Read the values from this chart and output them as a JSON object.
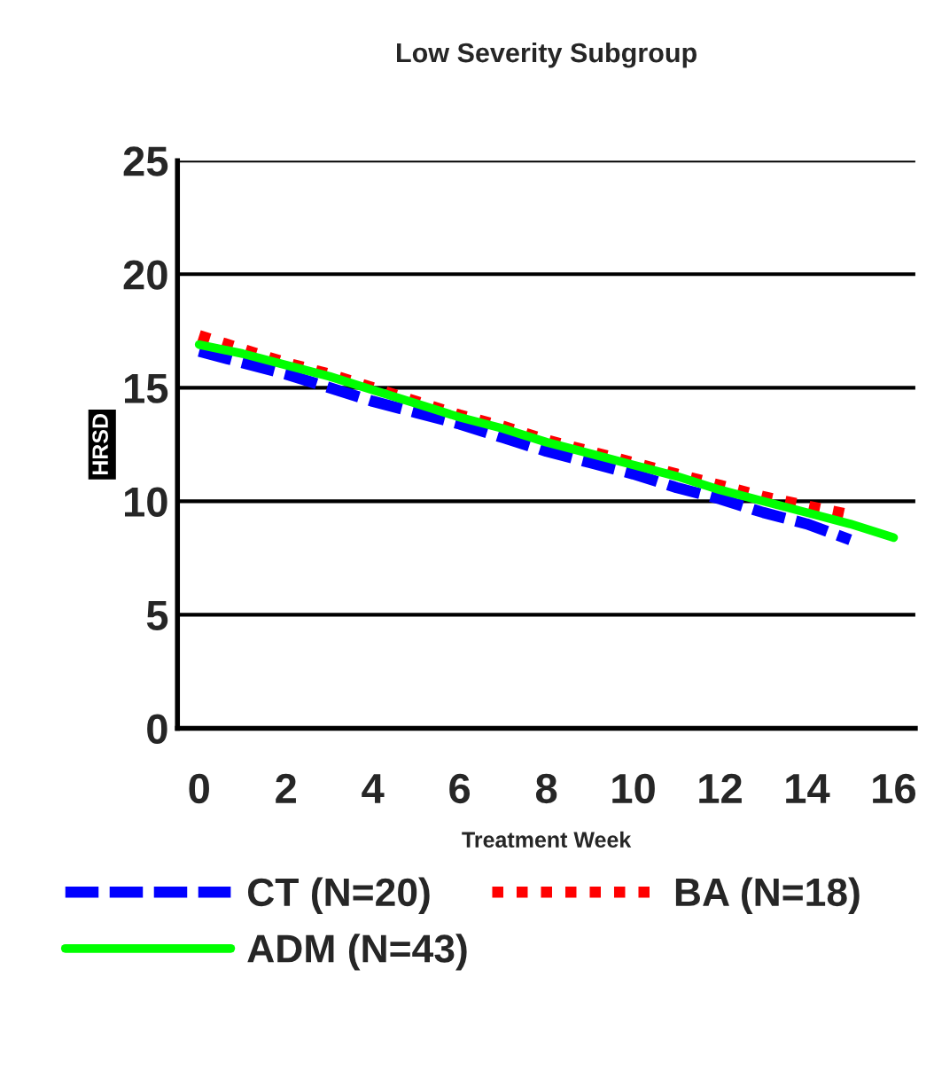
{
  "chart_data": {
    "type": "line",
    "title": "Low Severity Subgroup",
    "xlabel": "Treatment Week",
    "ylabel": "HRSD",
    "categories": [
      "0",
      null,
      "2",
      null,
      "4",
      null,
      "6",
      null,
      "8",
      null,
      "10",
      null,
      "12",
      null,
      "14",
      null,
      "16"
    ],
    "series": [
      {
        "name": "CT (N=20)",
        "color": "#0000ff",
        "line_style": "dashed",
        "values": [
          16.6,
          16.1,
          15.6,
          15.0,
          14.4,
          13.9,
          13.4,
          12.8,
          12.2,
          11.7,
          11.2,
          10.6,
          10.1,
          9.5,
          9.0,
          8.3,
          null
        ]
      },
      {
        "name": "BA (N=18)",
        "color": "#ff0000",
        "line_style": "dotted",
        "values": [
          17.3,
          16.7,
          16.1,
          15.6,
          15.0,
          14.4,
          13.8,
          13.3,
          12.7,
          12.2,
          11.7,
          11.2,
          10.7,
          10.2,
          9.8,
          9.4,
          null
        ]
      },
      {
        "name": "ADM (N=43)",
        "color": "#00ff00",
        "line_style": "solid",
        "values": [
          16.9,
          16.5,
          16.0,
          15.5,
          14.9,
          14.3,
          13.7,
          13.2,
          12.6,
          12.1,
          11.6,
          11.1,
          10.5,
          10.0,
          9.5,
          9.0,
          8.4
        ]
      }
    ],
    "ylim": [
      0,
      25
    ],
    "yticks": [
      0,
      5,
      10,
      15,
      20,
      25
    ],
    "grid": "y",
    "legend": "bottom",
    "marker": "none"
  }
}
